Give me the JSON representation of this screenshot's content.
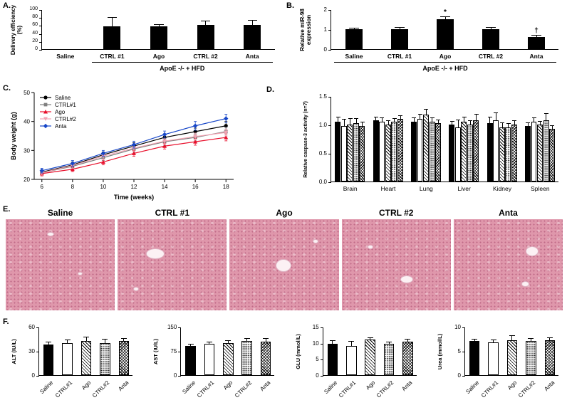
{
  "figure": {
    "panel_labels": {
      "A": "A.",
      "B": "B.",
      "C": "C.",
      "D": "D.",
      "E": "E.",
      "F": "F."
    }
  },
  "colors": {
    "saline": "#000000",
    "ctrl1": "#7f7f7f",
    "ago": "#e8112d",
    "ctrl2": "#f2a3b3",
    "anta": "#1646c8",
    "histology_pink": "#df97ab"
  },
  "panel_e": {
    "labels": [
      "Saline",
      "CTRL #1",
      "Ago",
      "CTRL #2",
      "Anta"
    ]
  },
  "chart_data": [
    {
      "id": "A",
      "type": "bar",
      "ylabel": "Delivery efficiency (%)",
      "ylim": [
        0,
        100
      ],
      "yticks": [
        0,
        20,
        40,
        60,
        80,
        100
      ],
      "tick_font": 7,
      "categories": [
        "Saline",
        "CTRL #1",
        "Ago",
        "CTRL #2",
        "Anta"
      ],
      "values": [
        0,
        58,
        57,
        61,
        60
      ],
      "errors": [
        0,
        20,
        4,
        8,
        11
      ],
      "annotations": [
        "",
        "",
        "",
        "",
        ""
      ],
      "bar_style": [
        "black",
        "black",
        "black",
        "black",
        "black"
      ],
      "bold_cats": true,
      "group_label": "ApoE -/- + HFD",
      "group_span": [
        1,
        4
      ]
    },
    {
      "id": "B",
      "type": "bar",
      "ylabel": "Relative miR-98 expression",
      "ylim": [
        0,
        2
      ],
      "yticks": [
        0,
        1,
        2
      ],
      "categories": [
        "Saline",
        "CTRL #1",
        "Ago",
        "CTRL #2",
        "Anta"
      ],
      "values": [
        1.0,
        1.0,
        1.5,
        1.0,
        0.62
      ],
      "errors": [
        0.05,
        0.06,
        0.12,
        0.06,
        0.07
      ],
      "annotations": [
        "",
        "",
        "*",
        "",
        "†"
      ],
      "bar_style": [
        "black",
        "black",
        "black",
        "black",
        "black"
      ],
      "bold_cats": true,
      "group_label": "ApoE -/- + HFD",
      "group_span": [
        0,
        4
      ]
    },
    {
      "id": "C",
      "type": "line",
      "xlabel": "Time (weeks)",
      "ylabel": "Body weight (g)",
      "x": [
        6,
        8,
        10,
        12,
        14,
        16,
        18
      ],
      "xlim": [
        5.5,
        18.5
      ],
      "ylim": [
        20,
        50
      ],
      "xticks": [
        6,
        8,
        10,
        12,
        14,
        16,
        18
      ],
      "yticks": [
        20,
        30,
        40,
        50
      ],
      "legend_position": "top-left",
      "series": [
        {
          "name": "Saline",
          "color": "#000000",
          "marker": "circle",
          "values": [
            22.5,
            25.0,
            28.5,
            31.5,
            34.5,
            36.5,
            38.5
          ],
          "errors": [
            0.8,
            1.0,
            1.0,
            1.2,
            1.2,
            1.2,
            1.5
          ]
        },
        {
          "name": "CTRL#1",
          "color": "#7f7f7f",
          "marker": "square",
          "values": [
            22.3,
            24.5,
            27.5,
            30.5,
            33.0,
            34.5,
            36.5
          ],
          "errors": [
            0.8,
            1.0,
            1.0,
            1.0,
            1.2,
            1.2,
            1.5
          ]
        },
        {
          "name": "Ago",
          "color": "#e8112d",
          "marker": "triangle",
          "values": [
            22.0,
            23.5,
            26.0,
            29.0,
            31.5,
            33.0,
            34.5
          ],
          "errors": [
            0.8,
            0.8,
            1.0,
            1.0,
            1.0,
            1.2,
            1.2
          ]
        },
        {
          "name": "CTRL#2",
          "color": "#f2a3b3",
          "marker": "triangle-down",
          "values": [
            22.3,
            24.8,
            28.0,
            30.8,
            33.2,
            34.8,
            36.2
          ],
          "errors": [
            0.8,
            1.0,
            1.0,
            1.0,
            1.0,
            1.2,
            1.2
          ]
        },
        {
          "name": "Anta",
          "color": "#1646c8",
          "marker": "diamond",
          "values": [
            23.0,
            25.5,
            29.0,
            32.0,
            35.5,
            38.5,
            41.0
          ],
          "errors": [
            0.8,
            1.0,
            1.0,
            1.2,
            1.2,
            1.5,
            1.5
          ]
        }
      ]
    },
    {
      "id": "D",
      "type": "grouped-bar",
      "ylabel": "Relative caspase-3 activity (n=7)",
      "ylabel_font": 7,
      "ylim": [
        0,
        1.5
      ],
      "yticks": [
        0,
        0.5,
        1.0,
        1.5
      ],
      "ytick_labels": [
        "0.0",
        "0.5",
        "1.0",
        "1.5"
      ],
      "categories": [
        "Brain",
        "Heart",
        "Lung",
        "Liver",
        "Kidney",
        "Spleen"
      ],
      "series": [
        {
          "name": "Saline",
          "style": "black",
          "values": [
            1.05,
            1.08,
            1.05,
            1.0,
            1.03,
            0.98
          ],
          "errors": [
            0.07,
            0.05,
            0.06,
            0.05,
            0.1,
            0.05
          ]
        },
        {
          "name": "CTRL#1",
          "style": "white",
          "values": [
            0.97,
            1.05,
            1.1,
            0.95,
            1.08,
            1.05
          ],
          "errors": [
            0.12,
            0.06,
            0.08,
            0.12,
            0.12,
            0.06
          ]
        },
        {
          "name": "Ago",
          "style": "hatch",
          "values": [
            1.0,
            1.0,
            1.18,
            1.05,
            0.95,
            1.0
          ],
          "errors": [
            0.1,
            0.06,
            0.08,
            0.08,
            0.08,
            0.05
          ]
        },
        {
          "name": "CTRL#2",
          "style": "dots",
          "values": [
            1.02,
            1.05,
            1.05,
            1.0,
            0.95,
            1.07
          ],
          "errors": [
            0.08,
            0.05,
            0.06,
            0.06,
            0.06,
            0.12
          ]
        },
        {
          "name": "Anta",
          "style": "cross",
          "values": [
            0.98,
            1.1,
            1.02,
            1.07,
            1.0,
            0.93
          ],
          "errors": [
            0.06,
            0.05,
            0.05,
            0.1,
            0.06,
            0.05
          ]
        }
      ]
    },
    {
      "id": "F-ALT",
      "type": "bar",
      "ylabel": "ALT (IU/L)",
      "ylabel_font": 7.5,
      "ylim": [
        0,
        60
      ],
      "yticks": [
        0,
        30,
        60
      ],
      "categories": [
        "Saline",
        "CTRL#1",
        "Ago",
        "CTRL#2",
        "Anta"
      ],
      "values": [
        38,
        40,
        42,
        40,
        42
      ],
      "errors": [
        3,
        3,
        5,
        4,
        3
      ],
      "bar_style": [
        "black",
        "white",
        "hatch",
        "dots",
        "cross"
      ],
      "rotate_labels": true
    },
    {
      "id": "F-AST",
      "type": "bar",
      "ylabel": "AST (IU/L)",
      "ylabel_font": 7.5,
      "ylim": [
        0,
        150
      ],
      "yticks": [
        0,
        75,
        150
      ],
      "categories": [
        "Saline",
        "CTRL#1",
        "Ago",
        "CTRL#2",
        "Anta"
      ],
      "values": [
        90,
        97,
        100,
        107,
        104
      ],
      "errors": [
        5,
        5,
        6,
        5,
        9
      ],
      "bar_style": [
        "black",
        "white",
        "hatch",
        "dots",
        "cross"
      ],
      "rotate_labels": true
    },
    {
      "id": "F-GLU",
      "type": "bar",
      "ylabel": "GLU (mmol/L)",
      "ylabel_font": 7.5,
      "ylim": [
        0,
        15
      ],
      "yticks": [
        0,
        5,
        10,
        15
      ],
      "categories": [
        "Saline",
        "CTRL#1",
        "Ago",
        "CTRL#2",
        "Anta"
      ],
      "values": [
        9.8,
        9.0,
        11.0,
        9.6,
        10.4
      ],
      "errors": [
        0.9,
        1.3,
        0.4,
        0.6,
        0.7
      ],
      "bar_style": [
        "black",
        "white",
        "hatch",
        "dots",
        "cross"
      ],
      "rotate_labels": true
    },
    {
      "id": "F-Urea",
      "type": "bar",
      "ylabel": "Urea (mmol/L)",
      "ylabel_font": 7.5,
      "ylim": [
        0,
        10
      ],
      "yticks": [
        0,
        5,
        10
      ],
      "categories": [
        "Saline",
        "CTRL#1",
        "Ago",
        "CTRL#2",
        "Anta"
      ],
      "values": [
        7.0,
        6.8,
        7.2,
        7.0,
        7.2
      ],
      "errors": [
        0.3,
        0.4,
        0.9,
        0.5,
        0.5
      ],
      "bar_style": [
        "black",
        "white",
        "hatch",
        "dots",
        "cross"
      ],
      "rotate_labels": true
    }
  ]
}
